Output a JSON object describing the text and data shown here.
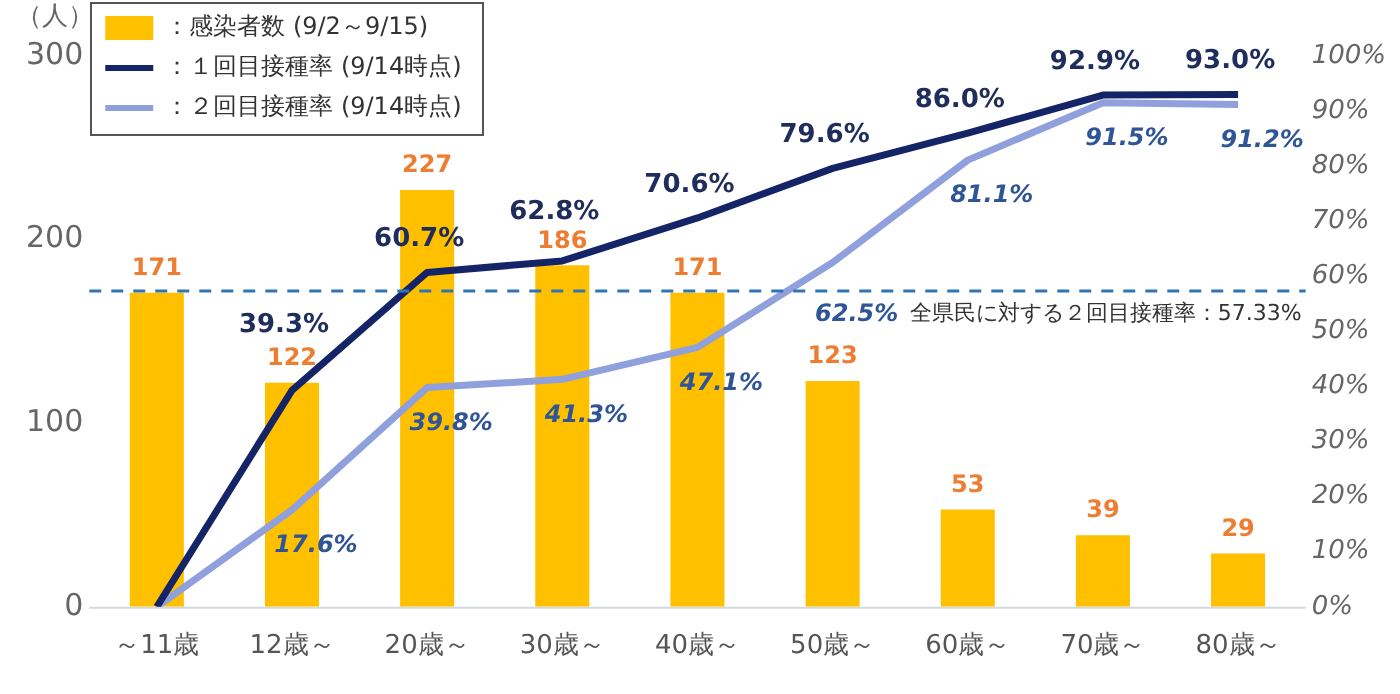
{
  "chart_data": {
    "type": "bar",
    "ylabel": "（人）",
    "categories": [
      "～11歳",
      "12歳～",
      "20歳～",
      "30歳～",
      "40歳～",
      "50歳～",
      "60歳～",
      "70歳～",
      "80歳～"
    ],
    "series": [
      {
        "name": "：感染者数 (9/2～9/15)",
        "color": "#ffc000",
        "values": [
          171,
          122,
          227,
          186,
          171,
          123,
          53,
          39,
          29
        ],
        "value_labels": [
          "171",
          "122",
          "227",
          "186",
          "171",
          "123",
          "53",
          "39",
          "29"
        ]
      },
      {
        "name": "：１回目接種率 (9/14時点)",
        "type": "line",
        "axis": "y2",
        "color": "#142466",
        "values": [
          0,
          39.3,
          60.7,
          62.8,
          70.6,
          79.6,
          86.0,
          92.9,
          93.0
        ],
        "value_labels": [
          null,
          "39.3%",
          "60.7%",
          "62.8%",
          "70.6%",
          "79.6%",
          "86.0%",
          "92.9%",
          "93.0%"
        ]
      },
      {
        "name": "：２回目接種率 (9/14時点)",
        "type": "line",
        "axis": "y2",
        "color": "#8fa0dc",
        "values": [
          0,
          17.6,
          39.8,
          41.3,
          47.1,
          62.5,
          81.1,
          91.5,
          91.2
        ],
        "value_labels": [
          null,
          "17.6%",
          "39.8%",
          "41.3%",
          "47.1%",
          "62.5%",
          "81.1%",
          "91.5%",
          "91.2%"
        ]
      }
    ],
    "ylim": [
      0,
      300
    ],
    "yticks": [
      0,
      100,
      200,
      300
    ],
    "y2lim": [
      0,
      100
    ],
    "y2ticks": [
      {
        "value": 0,
        "label": "0%"
      },
      {
        "value": 10,
        "label": "10%"
      },
      {
        "value": 20,
        "label": "20%"
      },
      {
        "value": 30,
        "label": "30%"
      },
      {
        "value": 40,
        "label": "40%"
      },
      {
        "value": 50,
        "label": "50%"
      },
      {
        "value": 60,
        "label": "60%"
      },
      {
        "value": 70,
        "label": "70%"
      },
      {
        "value": 80,
        "label": "80%"
      },
      {
        "value": 90,
        "label": "90%"
      },
      {
        "value": 100,
        "label": "100%"
      }
    ],
    "ref_lines": [
      {
        "axis": "y2",
        "value": 57.33,
        "label": "全県民に対する２回目接種率：57.33%",
        "color": "#2e75b6",
        "line_style": "dashed"
      }
    ],
    "grid": false,
    "legend": "top left",
    "marker": "none"
  }
}
